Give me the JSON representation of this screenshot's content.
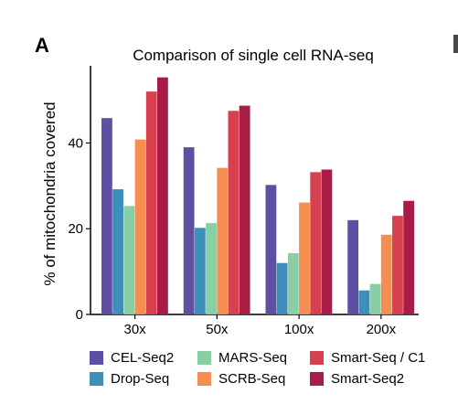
{
  "panel_label": "A",
  "chart_data": {
    "type": "bar",
    "title": "Comparison of single cell RNA-seq",
    "xlabel": "",
    "ylabel": "% of mitochondria covered",
    "ylim": [
      0,
      58
    ],
    "yticks": [
      0,
      20,
      40
    ],
    "categories": [
      "30x",
      "50x",
      "100x",
      "200x"
    ],
    "legend_position": "bottom",
    "series": [
      {
        "name": "CEL-Seq2",
        "color": "#5e4fa2",
        "values": [
          45.8,
          39.0,
          30.2,
          22.0
        ]
      },
      {
        "name": "Drop-Seq",
        "color": "#3d8eb9",
        "values": [
          29.2,
          20.2,
          12.0,
          5.6
        ]
      },
      {
        "name": "MARS-Seq",
        "color": "#88cfa4",
        "values": [
          25.3,
          21.3,
          14.3,
          7.1
        ]
      },
      {
        "name": "SCRB-Seq",
        "color": "#f68e52",
        "values": [
          40.8,
          34.2,
          26.1,
          18.6
        ]
      },
      {
        "name": "Smart-Seq / C1",
        "color": "#d7404e",
        "values": [
          52.0,
          47.5,
          33.2,
          23.0
        ]
      },
      {
        "name": "Smart-Seq2",
        "color": "#a81c45",
        "values": [
          55.3,
          48.7,
          33.8,
          26.5
        ]
      }
    ]
  }
}
